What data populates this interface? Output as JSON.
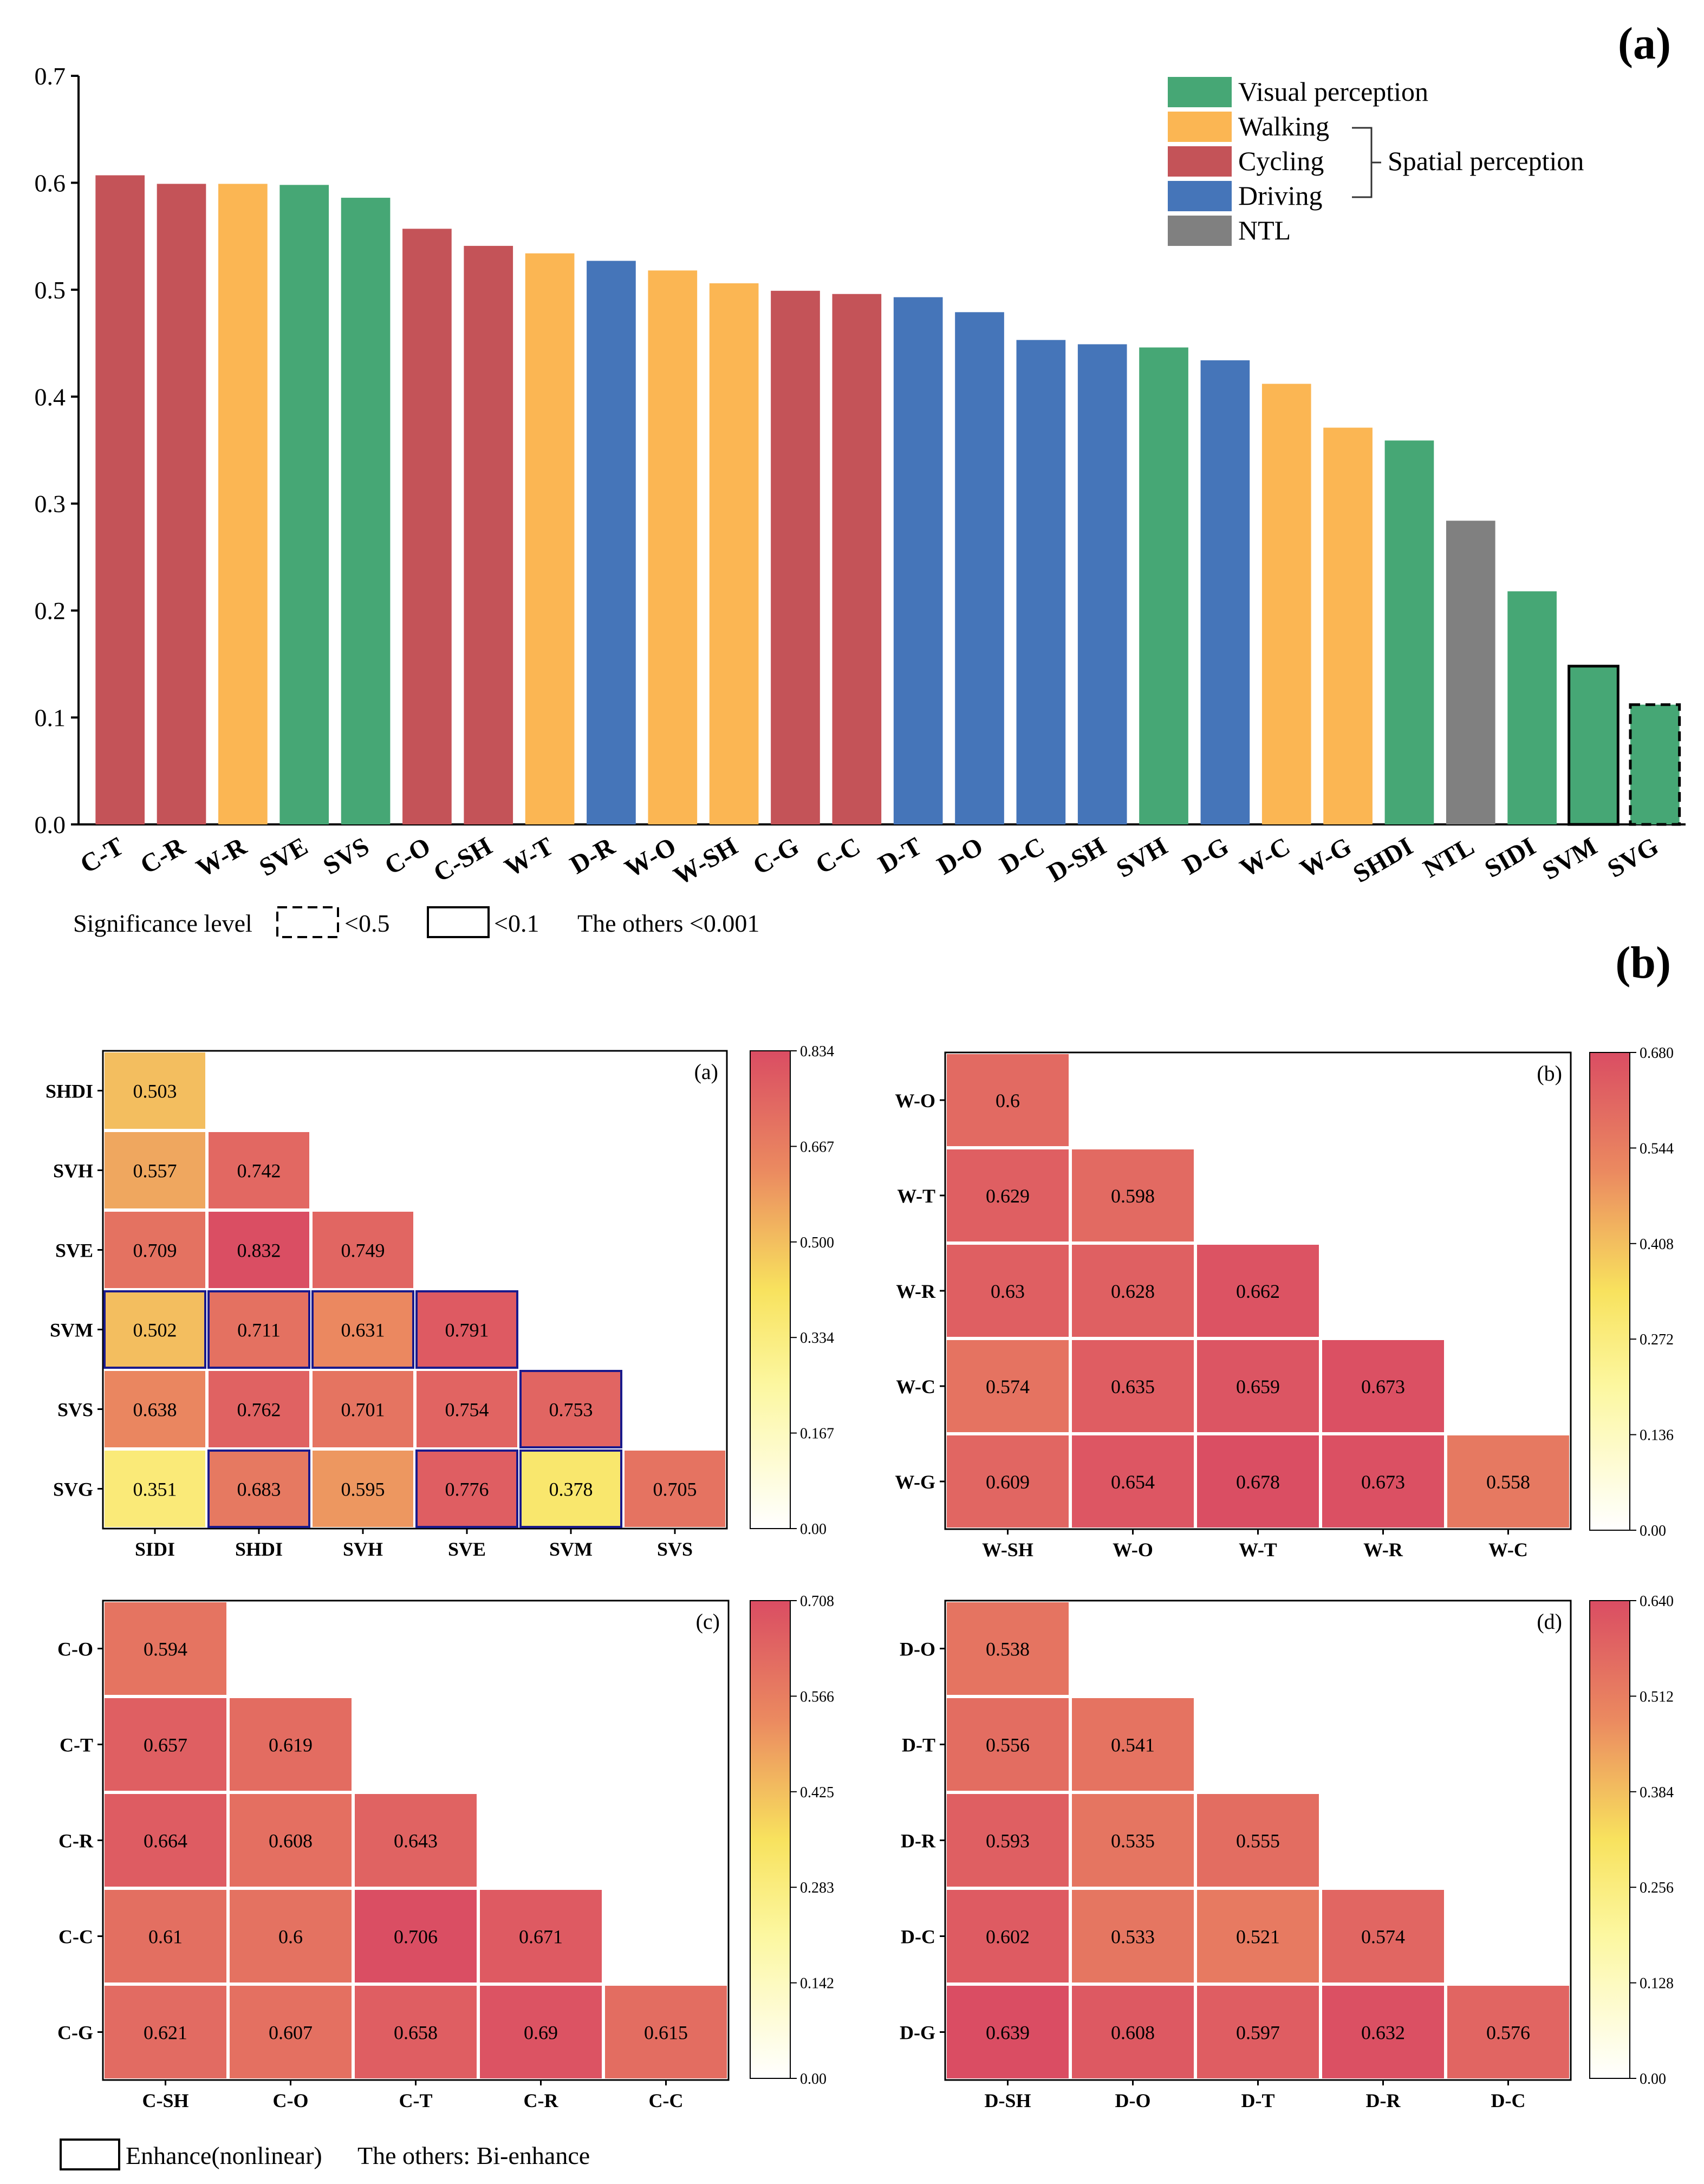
{
  "panel_a_label": "(a)",
  "panel_b_label": "(b)",
  "significance": {
    "title": "Significance level",
    "dashed_label": "<0.5",
    "solid_label": "<0.1",
    "others_label": "The others <0.001"
  },
  "legend": {
    "items": [
      {
        "label": "Visual perception",
        "color": "#46a775"
      },
      {
        "label": "Walking",
        "color": "#fbb653"
      },
      {
        "label": "Cycling",
        "color": "#c45358"
      },
      {
        "label": "Driving",
        "color": "#4575b9"
      },
      {
        "label": "NTL",
        "color": "#808080"
      }
    ],
    "group_label": "Spatial perception"
  },
  "enhance_legend": {
    "box_label": "Enhance(nonlinear)",
    "others_label": "The others: Bi-enhance"
  },
  "chart_data": [
    {
      "type": "bar",
      "title": "(a)",
      "ylim": [
        0,
        0.7
      ],
      "yticks": [
        "0.0",
        "0.1",
        "0.2",
        "0.3",
        "0.4",
        "0.5",
        "0.6",
        "0.7"
      ],
      "categories": [
        "C-T",
        "C-R",
        "W-R",
        "SVE",
        "SVS",
        "C-O",
        "C-SH",
        "W-T",
        "D-R",
        "W-O",
        "W-SH",
        "C-G",
        "C-C",
        "D-T",
        "D-O",
        "D-C",
        "D-SH",
        "SVH",
        "D-G",
        "W-C",
        "W-G",
        "SHDI",
        "NTL",
        "SIDI",
        "SVM",
        "SVG"
      ],
      "values": [
        0.607,
        0.599,
        0.599,
        0.598,
        0.586,
        0.557,
        0.541,
        0.534,
        0.527,
        0.518,
        0.506,
        0.499,
        0.496,
        0.493,
        0.479,
        0.453,
        0.449,
        0.446,
        0.434,
        0.412,
        0.371,
        0.359,
        0.284,
        0.218,
        0.148,
        0.112
      ],
      "groups": [
        "Cycling",
        "Cycling",
        "Walking",
        "Visual perception",
        "Visual perception",
        "Cycling",
        "Cycling",
        "Walking",
        "Driving",
        "Walking",
        "Walking",
        "Cycling",
        "Cycling",
        "Driving",
        "Driving",
        "Driving",
        "Driving",
        "Visual perception",
        "Driving",
        "Walking",
        "Walking",
        "Visual perception",
        "NTL",
        "Visual perception",
        "Visual perception",
        "Visual perception"
      ],
      "significance": [
        "",
        "",
        "",
        "",
        "",
        "",
        "",
        "",
        "",
        "",
        "",
        "",
        "",
        "",
        "",
        "",
        "",
        "",
        "",
        "",
        "",
        "",
        "",
        "",
        "<0.1",
        "<0.5"
      ]
    },
    {
      "type": "heatmap",
      "title": "(a)",
      "rows": [
        "SHDI",
        "SVH",
        "SVE",
        "SVM",
        "SVS",
        "SVG"
      ],
      "cols": [
        "SIDI",
        "SHDI",
        "SVH",
        "SVE",
        "SVM",
        "SVS"
      ],
      "values": [
        [
          "0.503"
        ],
        [
          "0.557",
          "0.742"
        ],
        [
          "0.709",
          "0.832",
          "0.749"
        ],
        [
          "0.502",
          "0.711",
          "0.631",
          "0.791"
        ],
        [
          "0.638",
          "0.762",
          "0.701",
          "0.754",
          "0.753"
        ],
        [
          "0.351",
          "0.683",
          "0.595",
          "0.776",
          "0.378",
          "0.705"
        ]
      ],
      "enhance_cells": [
        [
          3,
          0
        ],
        [
          3,
          1
        ],
        [
          3,
          2
        ],
        [
          3,
          3
        ],
        [
          4,
          4
        ],
        [
          5,
          1
        ],
        [
          5,
          3
        ],
        [
          5,
          4
        ]
      ],
      "colorbar_max": 0.834,
      "colorbar_ticks": [
        "0.834",
        "0.667",
        "0.500",
        "0.334",
        "0.167",
        "0.00"
      ]
    },
    {
      "type": "heatmap",
      "title": "(b)",
      "rows": [
        "W-O",
        "W-T",
        "W-R",
        "W-C",
        "W-G"
      ],
      "cols": [
        "W-SH",
        "W-O",
        "W-T",
        "W-R",
        "W-C"
      ],
      "values": [
        [
          "0.6"
        ],
        [
          "0.629",
          "0.598"
        ],
        [
          "0.63",
          "0.628",
          "0.662"
        ],
        [
          "0.574",
          "0.635",
          "0.659",
          "0.673"
        ],
        [
          "0.609",
          "0.654",
          "0.678",
          "0.673",
          "0.558"
        ]
      ],
      "enhance_cells": [],
      "colorbar_max": 0.68,
      "colorbar_ticks": [
        "0.680",
        "0.544",
        "0.408",
        "0.272",
        "0.136",
        "0.00"
      ]
    },
    {
      "type": "heatmap",
      "title": "(c)",
      "rows": [
        "C-O",
        "C-T",
        "C-R",
        "C-C",
        "C-G"
      ],
      "cols": [
        "C-SH",
        "C-O",
        "C-T",
        "C-R",
        "C-C"
      ],
      "values": [
        [
          "0.594"
        ],
        [
          "0.657",
          "0.619"
        ],
        [
          "0.664",
          "0.608",
          "0.643"
        ],
        [
          "0.61",
          "0.6",
          "0.706",
          "0.671"
        ],
        [
          "0.621",
          "0.607",
          "0.658",
          "0.69",
          "0.615"
        ]
      ],
      "enhance_cells": [],
      "colorbar_max": 0.708,
      "colorbar_ticks": [
        "0.708",
        "0.566",
        "0.425",
        "0.283",
        "0.142",
        "0.00"
      ]
    },
    {
      "type": "heatmap",
      "title": "(d)",
      "rows": [
        "D-O",
        "D-T",
        "D-R",
        "D-C",
        "D-G"
      ],
      "cols": [
        "D-SH",
        "D-O",
        "D-T",
        "D-R",
        "D-C"
      ],
      "values": [
        [
          "0.538"
        ],
        [
          "0.556",
          "0.541"
        ],
        [
          "0.593",
          "0.535",
          "0.555"
        ],
        [
          "0.602",
          "0.533",
          "0.521",
          "0.574"
        ],
        [
          "0.639",
          "0.608",
          "0.597",
          "0.632",
          "0.576"
        ]
      ],
      "enhance_cells": [],
      "colorbar_max": 0.64,
      "colorbar_ticks": [
        "0.640",
        "0.512",
        "0.384",
        "0.256",
        "0.128",
        "0.00"
      ]
    }
  ]
}
